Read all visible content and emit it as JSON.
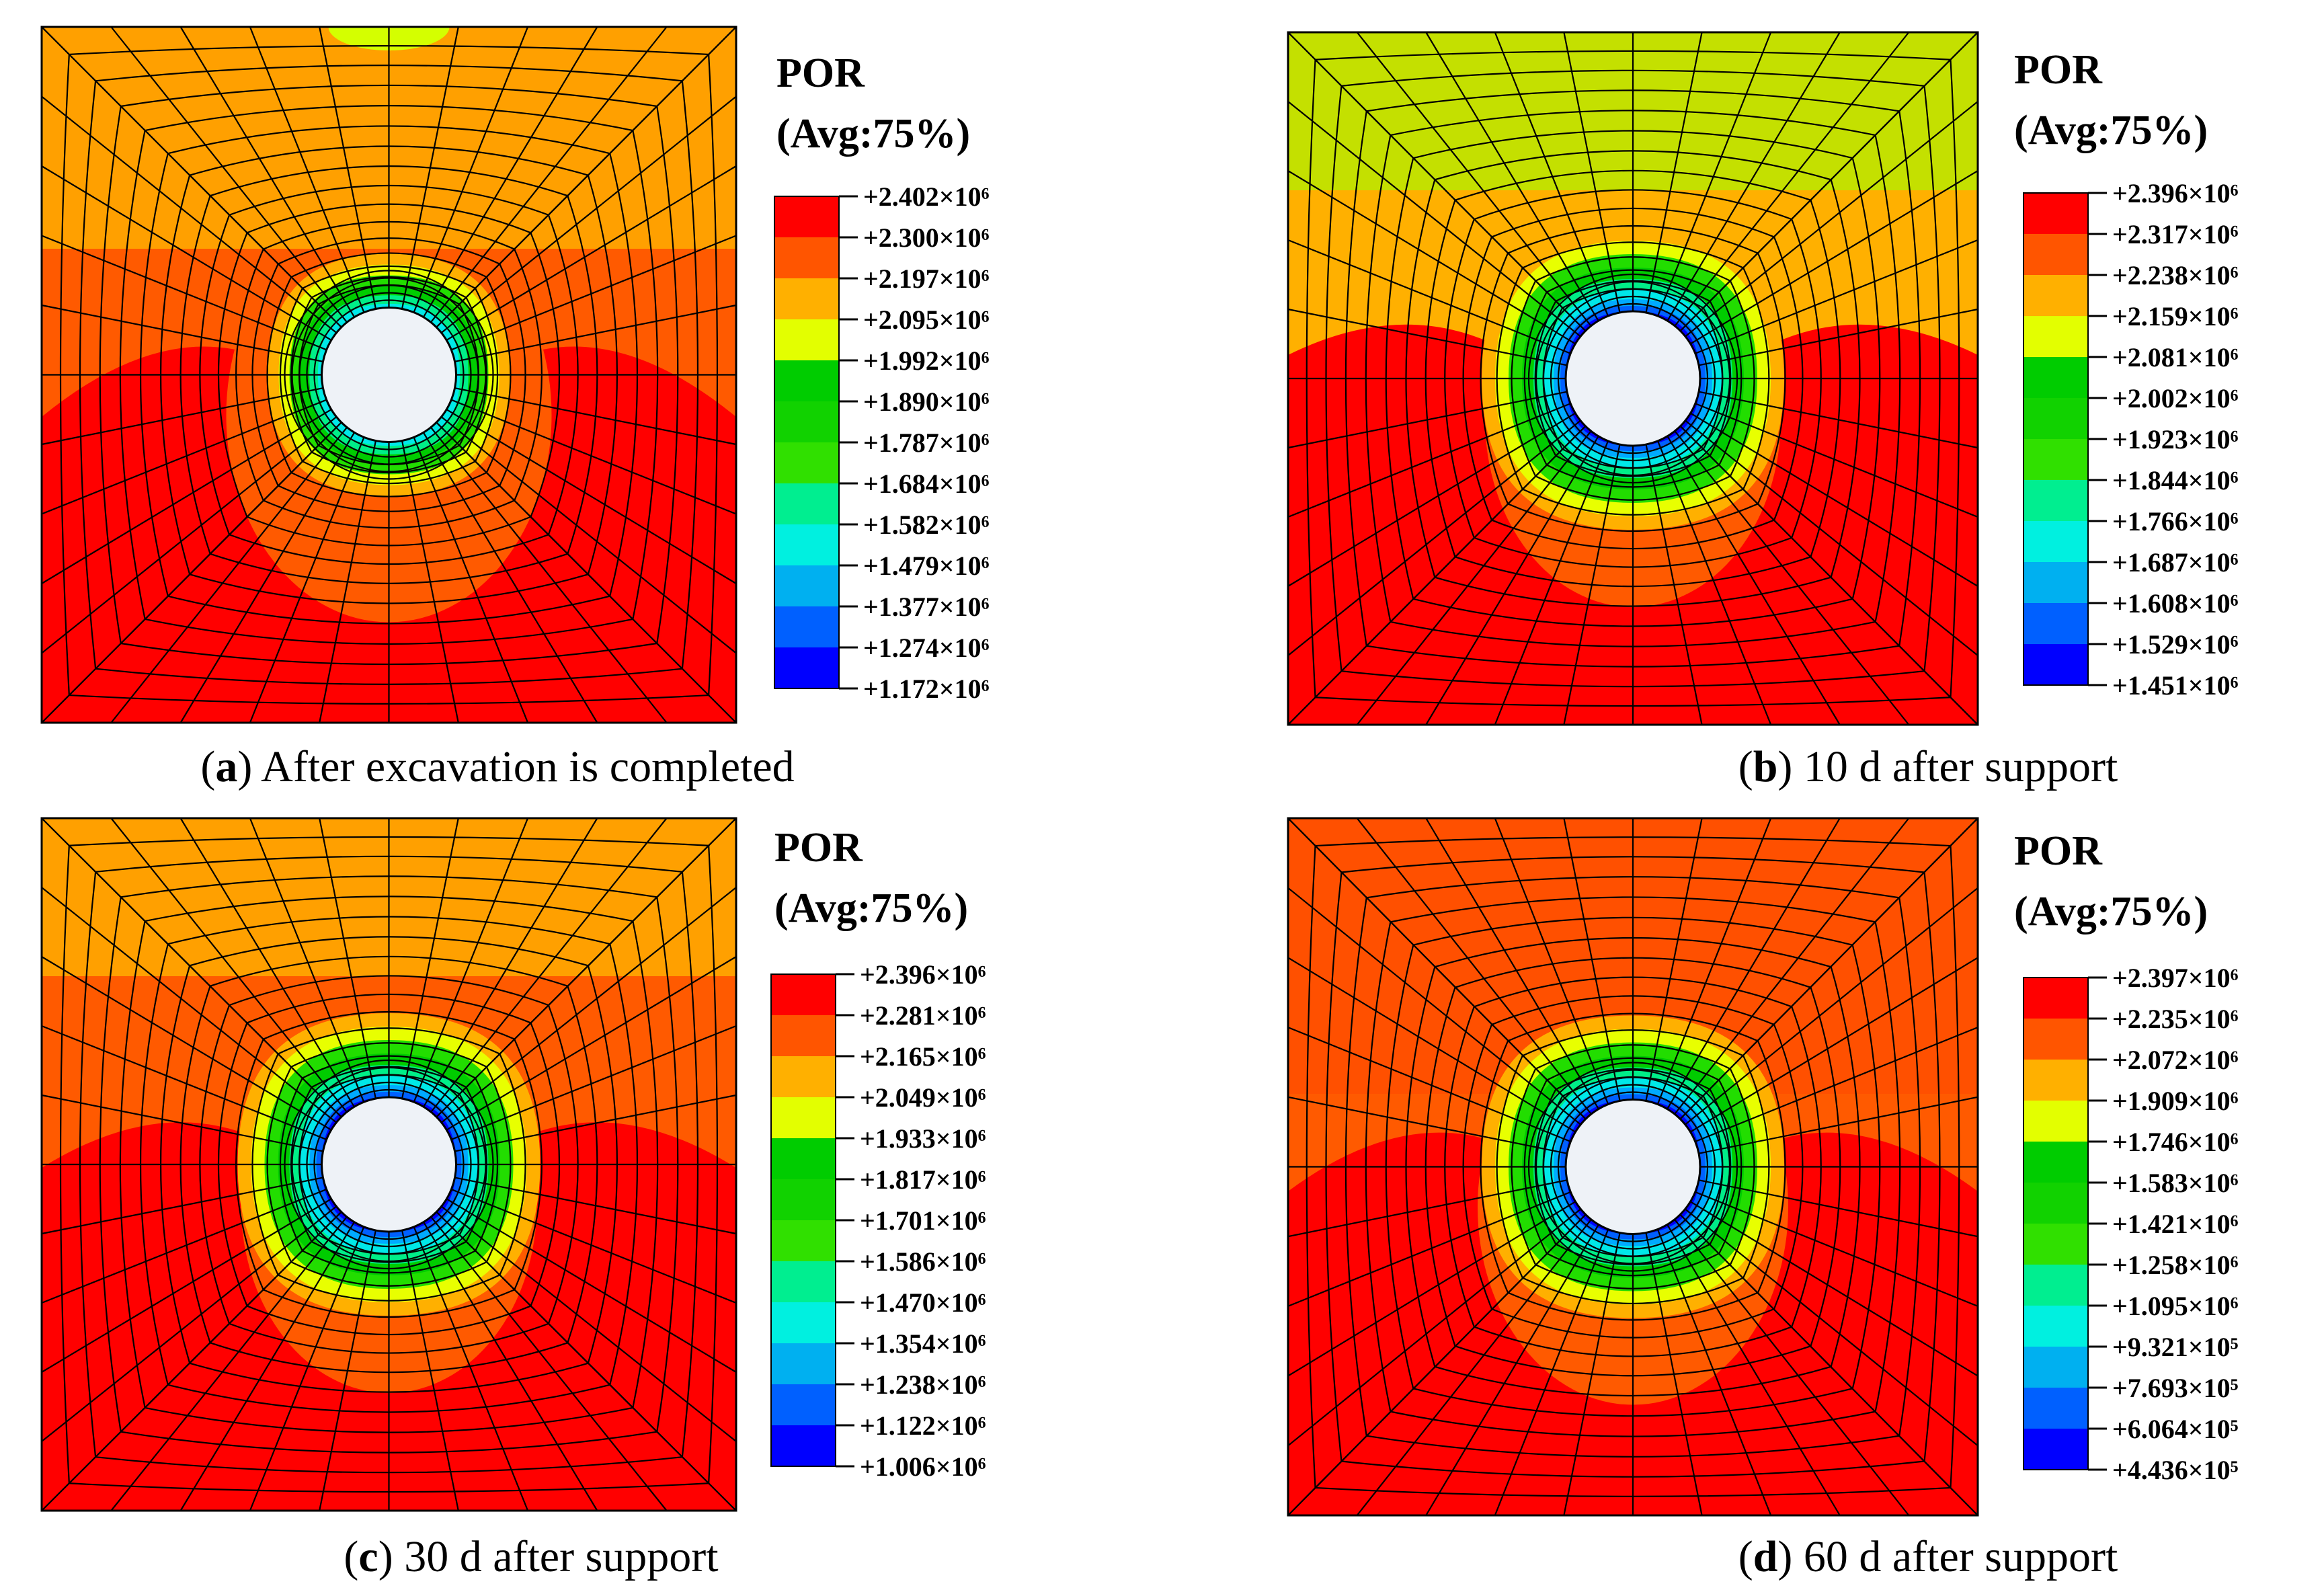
{
  "colors": {
    "contour": [
      "#0000ff",
      "#0060ff",
      "#00aaff",
      "#00e8e8",
      "#00ee88",
      "#00d200",
      "#22dd00",
      "#d4ff00",
      "#ffb000",
      "#ff6000",
      "#ff0000"
    ],
    "legend": [
      "#ff0000",
      "#ff5500",
      "#ffb000",
      "#e3ff00",
      "#00cc00",
      "#11d200",
      "#30e000",
      "#00ee90",
      "#00f0e0",
      "#00b0f0",
      "#0060ff",
      "#0000ff"
    ],
    "hole": "#eef2f7",
    "mesh": "#000000"
  },
  "panels": [
    {
      "id": "a",
      "caption_letter": "a",
      "caption_text": " After excavation is completed",
      "legend_title_1": "POR",
      "legend_title_2": "(Avg:75%)",
      "legend_values": [
        "+2.402×10⁶",
        "+2.300×10⁶",
        "+2.197×10⁶",
        "+2.095×10⁶",
        "+1.992×10⁶",
        "+1.890×10⁶",
        "+1.787×10⁶",
        "+1.684×10⁶",
        "+1.582×10⁶",
        "+1.479×10⁶",
        "+1.377×10⁶",
        "+1.274×10⁶",
        "+1.172×10⁶"
      ]
    },
    {
      "id": "b",
      "caption_letter": "b",
      "caption_text": " 10 d after support",
      "legend_title_1": "POR",
      "legend_title_2": "(Avg:75%)",
      "legend_values": [
        "+2.396×10⁶",
        "+2.317×10⁶",
        "+2.238×10⁶",
        "+2.159×10⁶",
        "+2.081×10⁶",
        "+2.002×10⁶",
        "+1.923×10⁶",
        "+1.844×10⁶",
        "+1.766×10⁶",
        "+1.687×10⁶",
        "+1.608×10⁶",
        "+1.529×10⁶",
        "+1.451×10⁶"
      ]
    },
    {
      "id": "c",
      "caption_letter": "c",
      "caption_text": " 30 d after support",
      "legend_title_1": "POR",
      "legend_title_2": "(Avg:75%)",
      "legend_values": [
        "+2.396×10⁶",
        "+2.281×10⁶",
        "+2.165×10⁶",
        "+2.049×10⁶",
        "+1.933×10⁶",
        "+1.817×10⁶",
        "+1.701×10⁶",
        "+1.586×10⁶",
        "+1.470×10⁶",
        "+1.354×10⁶",
        "+1.238×10⁶",
        "+1.122×10⁶",
        "+1.006×10⁶"
      ]
    },
    {
      "id": "d",
      "caption_letter": "d",
      "caption_text": " 60 d after support",
      "legend_title_1": "POR",
      "legend_title_2": "(Avg:75%)",
      "legend_values": [
        "+2.397×10⁶",
        "+2.235×10⁶",
        "+2.072×10⁶",
        "+1.909×10⁶",
        "+1.746×10⁶",
        "+1.583×10⁶",
        "+1.421×10⁶",
        "+1.258×10⁶",
        "+1.095×10⁶",
        "+9.321×10⁵",
        "+7.693×10⁵",
        "+6.064×10⁵",
        "+4.436×10⁵"
      ]
    }
  ]
}
